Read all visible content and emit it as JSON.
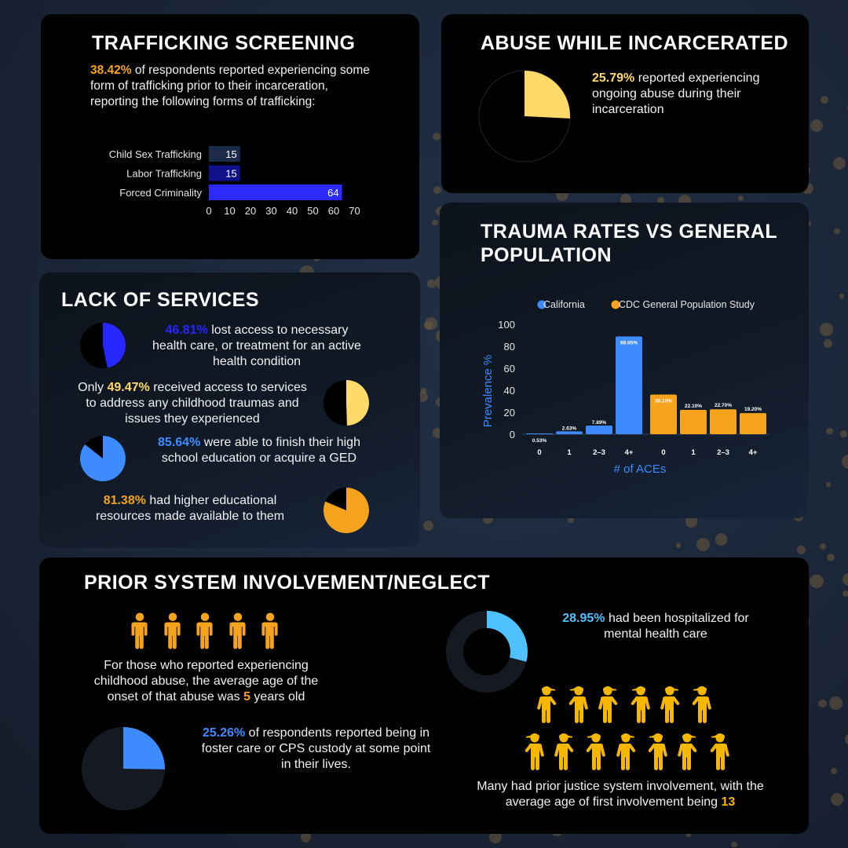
{
  "trafficking": {
    "title": "TRAFFICKING SCREENING",
    "pct": "38.42%",
    "text": " of respondents reported experiencing some form of trafficking prior to their incarceration, reporting the following forms of trafficking:",
    "bars": [
      {
        "label": "Child Sex Trafficking",
        "value": 15,
        "color": "#1e2a4a"
      },
      {
        "label": "Labor Trafficking",
        "value": 15,
        "color": "#10108a"
      },
      {
        "label": "Forced Criminality",
        "value": 64,
        "color": "#2b2bff"
      }
    ],
    "ticks": [
      "0",
      "10",
      "20",
      "30",
      "40",
      "50",
      "60",
      "70"
    ]
  },
  "abuse": {
    "title": "ABUSE WHILE INCARCERATED",
    "pct": "25.79%",
    "text": " reported experiencing ongoing abuse during their incarceration",
    "fraction": 0.2579,
    "color": "#ffd96a"
  },
  "services": {
    "title": "LACK OF SERVICES",
    "items": [
      {
        "pct": "46.81%",
        "text": "  lost access to necessary health care, or treatment for an active health condition",
        "fraction": 0.4681,
        "color": "#2626ff"
      },
      {
        "prefix": "Only ",
        "pct": "49.47%",
        "text": " received access to services to address any childhood traumas and issues they experienced",
        "fraction": 0.4947,
        "color": "#ffd96a"
      },
      {
        "pct": "85.64%",
        "text": " were able to finish their high school education or acquire a GED",
        "fraction": 0.8564,
        "color": "#3d8bff"
      },
      {
        "pct": "81.38%",
        "text": " had higher educational resources made available to them",
        "fraction": 0.8138,
        "color": "#f5a31c"
      }
    ]
  },
  "trauma": {
    "title": "TRAUMA RATES VS GENERAL POPULATION"
  },
  "chart_data": {
    "type": "bar",
    "title": "TRAUMA RATES VS GENERAL POPULATION",
    "xlabel": "# of ACEs",
    "ylabel": "Prevalence %",
    "ylim": [
      0,
      100
    ],
    "yticks": [
      "0",
      "20",
      "40",
      "60",
      "80",
      "100"
    ],
    "legend": "top",
    "series": [
      {
        "name": "California",
        "color": "#3d8bff",
        "categories": [
          "0",
          "1",
          "2-3",
          "4+"
        ],
        "values": [
          0.53,
          2.63,
          7.89,
          88.95
        ],
        "labels": [
          "0.53%",
          "2.63%",
          "7.89%",
          "88.95%"
        ]
      },
      {
        "name": "CDC General Population Study",
        "color": "#f5a31c",
        "categories": [
          "0",
          "1",
          "2-3",
          "4+"
        ],
        "values": [
          36.1,
          22.1,
          22.7,
          19.2
        ],
        "labels": [
          "36.10%",
          "22.10%",
          "22.70%",
          "19.20%"
        ]
      }
    ],
    "tick_labels": [
      "0",
      "1",
      "2–3",
      "4+",
      "0",
      "1",
      "2–3",
      "4+"
    ]
  },
  "prior": {
    "title": "PRIOR SYSTEM INVOLVEMENT/NEGLECT",
    "onset_text": "For those who reported experiencing childhood abuse, the average age of the onset of that abuse was ",
    "onset_age": "5",
    "onset_suffix": " years old",
    "hosp_pct": "28.95%",
    "hosp_text": " had been hospitalized for mental health care",
    "hosp_fraction": 0.2895,
    "foster_pct": "25.26%",
    "foster_text": " of respondents reported being in foster care or CPS custody at some point in their lives.",
    "foster_fraction": 0.2526,
    "justice_text": "Many had prior justice system involvement, with the average age of first involvement being ",
    "justice_age": "13",
    "person_color": "#f5a31c",
    "justice_color": "#f5b700"
  }
}
